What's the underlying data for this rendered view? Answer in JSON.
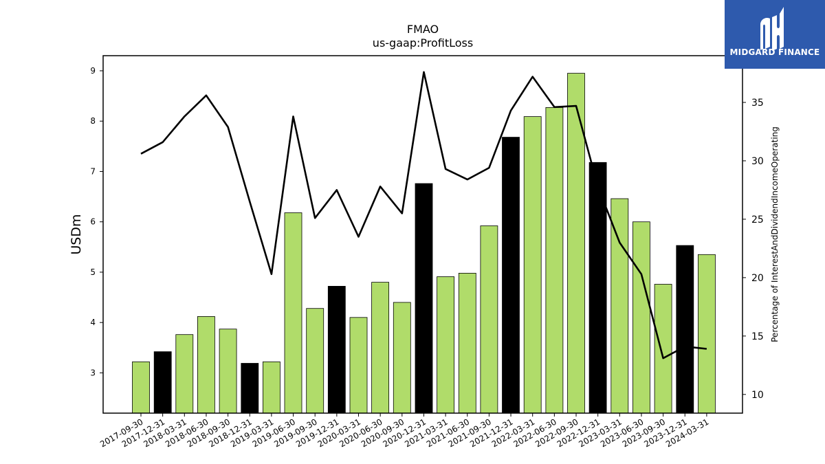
{
  "chart_data": {
    "type": "bar",
    "title": "FMAO",
    "subtitle": "us-gaap:ProfitLoss",
    "ylabel": "USDm",
    "y2label": "Percentage of InterestAndDividendIncomeOperating",
    "ylim": [
      2.2,
      9.3
    ],
    "y2lim": [
      8.4,
      39.0
    ],
    "yticks": [
      3,
      4,
      5,
      6,
      7,
      8,
      9
    ],
    "y2ticks": [
      10,
      15,
      20,
      25,
      30,
      35
    ],
    "categories": [
      "2017-09-30",
      "2017-12-31",
      "2018-03-31",
      "2018-06-30",
      "2018-09-30",
      "2018-12-31",
      "2019-03-31",
      "2019-06-30",
      "2019-09-30",
      "2019-12-31",
      "2020-03-31",
      "2020-06-30",
      "2020-09-30",
      "2020-12-31",
      "2021-03-31",
      "2021-06-30",
      "2021-09-30",
      "2021-12-31",
      "2022-03-31",
      "2022-06-30",
      "2022-09-30",
      "2022-12-31",
      "2023-03-31",
      "2023-06-30",
      "2023-09-30",
      "2023-12-31",
      "2024-03-31"
    ],
    "series": [
      {
        "type": "bar",
        "values": [
          3.22,
          3.42,
          3.76,
          4.12,
          3.87,
          3.19,
          3.22,
          6.18,
          4.28,
          4.72,
          4.1,
          4.8,
          4.4,
          6.76,
          4.91,
          4.98,
          5.92,
          7.68,
          8.09,
          8.27,
          8.95,
          7.18,
          6.46,
          6.0,
          4.76,
          5.53,
          5.35
        ],
        "colors": [
          "#b0dc6a",
          "#000000",
          "#b0dc6a",
          "#b0dc6a",
          "#b0dc6a",
          "#000000",
          "#b0dc6a",
          "#b0dc6a",
          "#b0dc6a",
          "#000000",
          "#b0dc6a",
          "#b0dc6a",
          "#b0dc6a",
          "#000000",
          "#b0dc6a",
          "#b0dc6a",
          "#b0dc6a",
          "#000000",
          "#b0dc6a",
          "#b0dc6a",
          "#b0dc6a",
          "#000000",
          "#b0dc6a",
          "#b0dc6a",
          "#b0dc6a",
          "#000000",
          "#b0dc6a"
        ]
      },
      {
        "type": "line",
        "axis": "right",
        "color": "#000000",
        "values": [
          30.6,
          31.6,
          33.8,
          35.6,
          32.9,
          26.5,
          20.3,
          33.8,
          25.1,
          27.5,
          23.5,
          27.8,
          25.5,
          37.6,
          29.3,
          28.4,
          29.4,
          34.3,
          37.2,
          34.6,
          34.7,
          27.8,
          23.0,
          20.3,
          13.1,
          14.1,
          13.9
        ]
      }
    ],
    "grid": false
  },
  "logo": {
    "text": "MIDGARD FINANCE",
    "bg_color": "#2e5aad"
  }
}
